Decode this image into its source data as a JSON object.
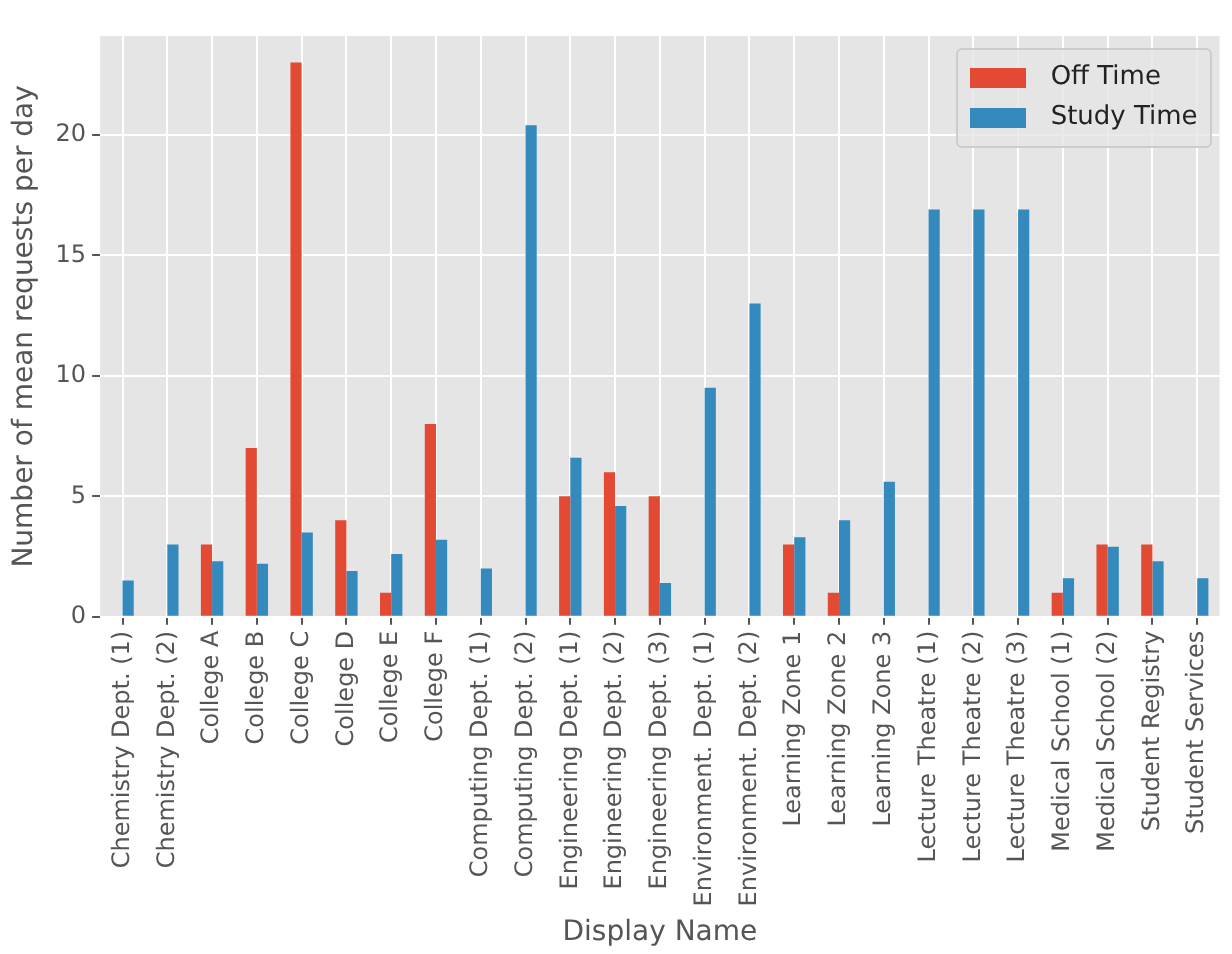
{
  "chart_data": {
    "type": "bar",
    "xlabel": "Display Name",
    "ylabel": "Number of mean requests per day",
    "categories": [
      "Chemistry Dept. (1)",
      "Chemistry Dept. (2)",
      "College A",
      "College B",
      "College C",
      "College D",
      "College E",
      "College F",
      "Computing Dept. (1)",
      "Computing Dept. (2)",
      "Engineering Dept. (1)",
      "Engineering Dept. (2)",
      "Engineering Dept. (3)",
      "Environment. Dept. (1)",
      "Environment. Dept. (2)",
      "Learning Zone 1",
      "Learning Zone 2",
      "Learning Zone 3",
      "Lecture Theatre (1)",
      "Lecture Theatre (2)",
      "Lecture Theatre (3)",
      "Medical School (1)",
      "Medical School (2)",
      "Student Registry",
      "Student Services"
    ],
    "series": [
      {
        "name": "Off Time",
        "color": "#e24a33",
        "values": [
          0,
          0,
          3,
          7,
          23,
          4,
          1,
          8,
          0,
          0,
          5,
          6,
          5,
          0,
          0,
          3,
          1,
          0,
          0,
          0,
          0,
          1,
          3,
          3,
          0
        ]
      },
      {
        "name": "Study Time",
        "color": "#348abd",
        "values": [
          1.5,
          3.0,
          2.3,
          2.2,
          3.5,
          1.9,
          2.6,
          3.2,
          2.0,
          20.4,
          6.6,
          4.6,
          1.4,
          9.5,
          13.0,
          3.3,
          4.0,
          5.6,
          16.9,
          16.9,
          16.9,
          1.6,
          2.9,
          2.3,
          1.6
        ]
      }
    ],
    "ylim": [
      0,
      24.1
    ],
    "yticks": [
      0,
      5,
      10,
      15,
      20
    ],
    "grid": true,
    "legend": "top right"
  }
}
